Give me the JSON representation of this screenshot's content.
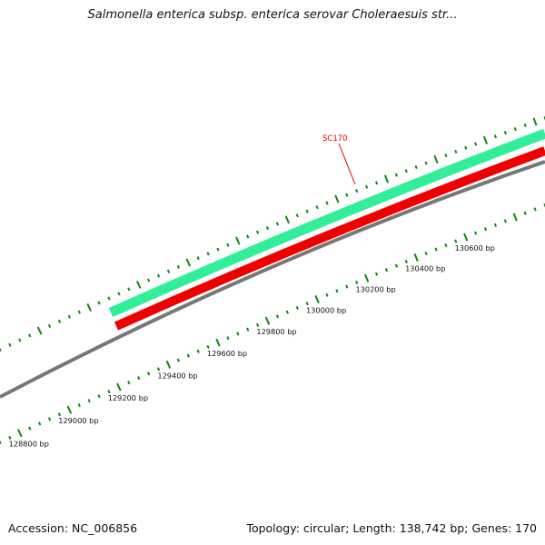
{
  "title": "Salmonella enterica subsp. enterica serovar Choleraesuis str...",
  "footer": {
    "accession_label": "Accession:",
    "accession": "NC_006856",
    "topology_label": "Topology:",
    "topology": "circular",
    "length_label": "Length:",
    "length": "138,742 bp",
    "genes_label": "Genes:",
    "genes": "170"
  },
  "gene_label": "SC170",
  "ruler_labels": [
    "128800 bp",
    "129000 bp",
    "129200 bp",
    "129400 bp",
    "129600 bp",
    "129800 bp",
    "130000 bp",
    "130200 bp",
    "130400 bp",
    "130600 bp"
  ],
  "colors": {
    "forward_gene": "#33ee99",
    "reverse_gene": "#ee0000",
    "backbone": "#777777",
    "ticks": "#118811",
    "gene_label": "#e00000"
  }
}
